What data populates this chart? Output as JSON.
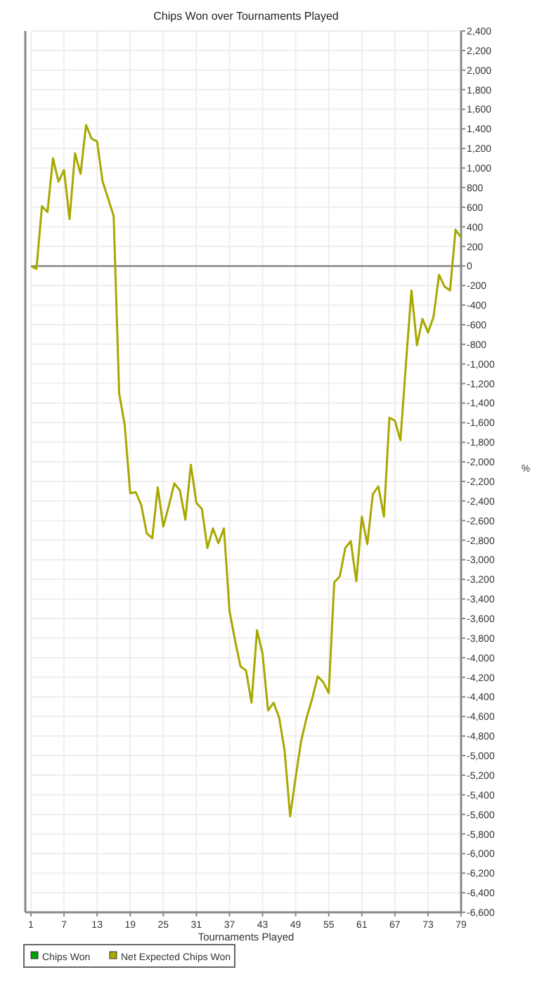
{
  "chart_data": {
    "type": "line",
    "title": "Chips Won over Tournaments Played",
    "xlabel": "Tournaments Played",
    "ylabel": "%",
    "x": [
      1,
      2,
      3,
      4,
      5,
      6,
      7,
      8,
      9,
      10,
      11,
      12,
      13,
      14,
      15,
      16,
      17,
      18,
      19,
      20,
      21,
      22,
      23,
      24,
      25,
      26,
      27,
      28,
      29,
      30,
      31,
      32,
      33,
      34,
      35,
      36,
      37,
      38,
      39,
      40,
      41,
      42,
      43,
      44,
      45,
      46,
      47,
      48,
      49,
      50,
      51,
      52,
      53,
      54,
      55,
      56,
      57,
      58,
      59,
      60,
      61,
      62,
      63,
      64,
      65,
      66,
      67,
      68,
      69,
      70,
      71,
      72,
      73,
      74,
      75,
      76,
      77,
      78,
      79
    ],
    "series": [
      {
        "name": "Chips Won",
        "color": "#00a000",
        "values": [
          null,
          null,
          null,
          null,
          null,
          null,
          null,
          null,
          null,
          null,
          null,
          null,
          null,
          null,
          null,
          null,
          null,
          null,
          null,
          null,
          null,
          null,
          null,
          null,
          null,
          null,
          null,
          null,
          null,
          null,
          null,
          null,
          null,
          null,
          null,
          null,
          null,
          null,
          null,
          null,
          null,
          null,
          null,
          null,
          null,
          null,
          null,
          null,
          null,
          null,
          null,
          null,
          null,
          null,
          null,
          null,
          null,
          null,
          null,
          null,
          null,
          null,
          null,
          null,
          null,
          null,
          null,
          null,
          null,
          null,
          null,
          null,
          null,
          null,
          null,
          null,
          null,
          null,
          null
        ]
      },
      {
        "name": "Net Expected Chips Won",
        "color": "#a8a800",
        "values": [
          0,
          -30,
          610,
          550,
          1100,
          860,
          980,
          480,
          1150,
          940,
          1440,
          1300,
          1270,
          860,
          690,
          510,
          -1300,
          -1620,
          -2320,
          -2310,
          -2440,
          -2730,
          -2780,
          -2260,
          -2660,
          -2450,
          -2220,
          -2290,
          -2590,
          -2030,
          -2420,
          -2480,
          -2880,
          -2680,
          -2830,
          -2680,
          -3520,
          -3820,
          -4090,
          -4130,
          -4460,
          -3720,
          -3960,
          -4540,
          -4460,
          -4610,
          -4950,
          -5620,
          -5220,
          -4850,
          -4610,
          -4420,
          -4190,
          -4250,
          -4360,
          -3230,
          -3170,
          -2880,
          -2810,
          -3220,
          -2560,
          -2840,
          -2330,
          -2250,
          -2560,
          -1550,
          -1580,
          -1780,
          -1000,
          -250,
          -810,
          -540,
          -680,
          -520,
          -90,
          -210,
          -250,
          370,
          290
        ]
      }
    ],
    "xlim": [
      1,
      79
    ],
    "xticks": [
      1,
      7,
      13,
      19,
      25,
      31,
      37,
      43,
      49,
      55,
      61,
      67,
      73,
      79
    ],
    "ylim": [
      -6600,
      2400
    ],
    "yticks": [
      {
        "value": 2400,
        "label": "2,400"
      },
      {
        "value": 2200,
        "label": "2,200"
      },
      {
        "value": 2000,
        "label": "2,000"
      },
      {
        "value": 1800,
        "label": "1,800"
      },
      {
        "value": 1600,
        "label": "1,600"
      },
      {
        "value": 1400,
        "label": "1,400"
      },
      {
        "value": 1200,
        "label": "1,200"
      },
      {
        "value": 1000,
        "label": "1,000"
      },
      800,
      600,
      400,
      200,
      0,
      -200,
      -400,
      -600,
      -800,
      {
        "value": -1000,
        "label": "-1,000"
      },
      {
        "value": -1200,
        "label": "-1,200"
      },
      {
        "value": -1400,
        "label": "-1,400"
      },
      {
        "value": -1600,
        "label": "-1,600"
      },
      {
        "value": -1800,
        "label": "-1,800"
      },
      {
        "value": -2000,
        "label": "-2,000"
      },
      {
        "value": -2200,
        "label": "-2,200"
      },
      {
        "value": -2400,
        "label": "-2,400"
      },
      {
        "value": -2600,
        "label": "-2,600"
      },
      {
        "value": -2800,
        "label": "-2,800"
      },
      {
        "value": -3000,
        "label": "-3,000"
      },
      {
        "value": -3200,
        "label": "-3,200"
      },
      {
        "value": -3400,
        "label": "-3,400"
      },
      {
        "value": -3600,
        "label": "-3,600"
      },
      {
        "value": -3800,
        "label": "-3,800"
      },
      {
        "value": -4000,
        "label": "-4,000"
      },
      {
        "value": -4200,
        "label": "-4,200"
      },
      {
        "value": -4400,
        "label": "-4,400"
      },
      {
        "value": -4600,
        "label": "-4,600"
      },
      {
        "value": -4800,
        "label": "-4,800"
      },
      {
        "value": -5000,
        "label": "-5,000"
      },
      {
        "value": -5200,
        "label": "-5,200"
      },
      {
        "value": -5400,
        "label": "-5,400"
      },
      {
        "value": -5600,
        "label": "-5,600"
      },
      {
        "value": -5800,
        "label": "-5,800"
      },
      {
        "value": -6000,
        "label": "-6,000"
      },
      {
        "value": -6200,
        "label": "-6,200"
      },
      {
        "value": -6400,
        "label": "-6,400"
      },
      {
        "value": -6600,
        "label": "-6,600"
      }
    ],
    "ref_lines": [
      {
        "axis": "y",
        "value": 0,
        "color": "#707070"
      }
    ],
    "grid": true,
    "legend": "bottom left",
    "marker": "none",
    "line_style": "solid"
  }
}
